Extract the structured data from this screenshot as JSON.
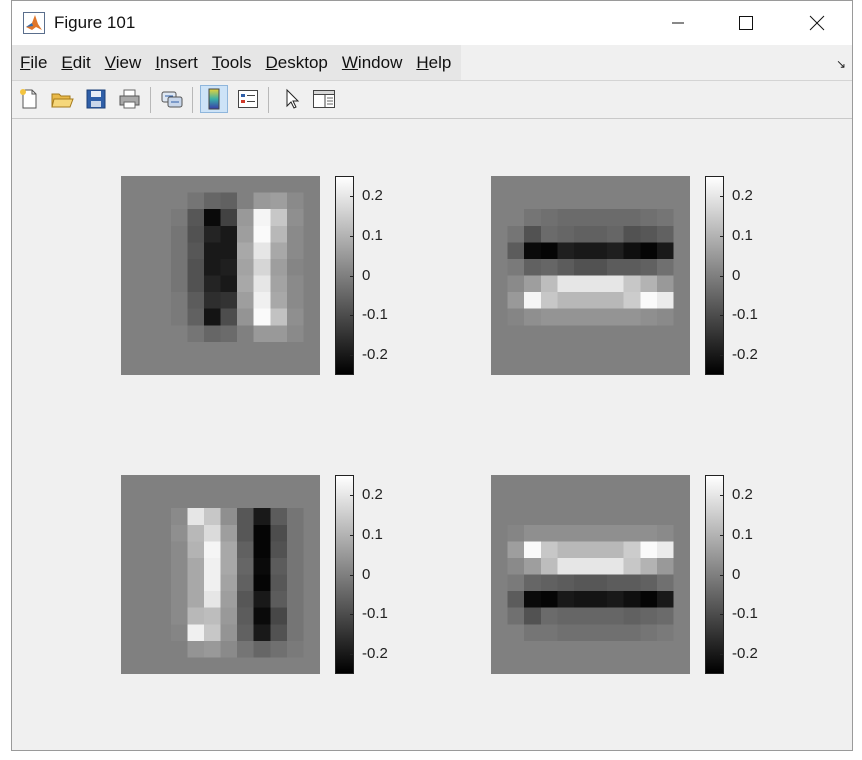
{
  "window": {
    "title": "Figure 101",
    "controls": {
      "minimize": "minimize",
      "maximize": "maximize",
      "close": "close"
    }
  },
  "menu": [
    "File",
    "Edit",
    "View",
    "Insert",
    "Tools",
    "Desktop",
    "Window",
    "Help"
  ],
  "toolbar": [
    {
      "name": "new-figure-icon"
    },
    {
      "name": "open-file-icon"
    },
    {
      "name": "save-icon"
    },
    {
      "name": "print-icon"
    },
    {
      "name": "link-plot-icon"
    },
    {
      "name": "colorbar-toggle-icon",
      "active": true
    },
    {
      "name": "legend-toggle-icon"
    },
    {
      "name": "edit-plot-pointer-icon"
    },
    {
      "name": "property-inspector-icon"
    }
  ],
  "chart_data": [
    {
      "type": "heatmap",
      "colormap": "gray",
      "clim": [
        -0.25,
        0.25
      ],
      "colorbar_ticks": [
        "0.2",
        "0.1",
        "0",
        "-0.1",
        "-0.2"
      ],
      "colorbar_tick_values": [
        0.2,
        0.1,
        0,
        -0.1,
        -0.2
      ],
      "matrix": [
        [
          0,
          0,
          0,
          0,
          0,
          0,
          0,
          0,
          0,
          0,
          0,
          0
        ],
        [
          0,
          0,
          0,
          0,
          -0.02,
          -0.05,
          -0.06,
          0,
          0.05,
          0.06,
          0.02,
          0
        ],
        [
          0,
          0,
          0,
          -0.01,
          -0.08,
          -0.23,
          -0.12,
          0.05,
          0.23,
          0.14,
          0.03,
          0
        ],
        [
          0,
          0,
          0,
          -0.02,
          -0.09,
          -0.18,
          -0.2,
          0.06,
          0.24,
          0.11,
          0.02,
          0
        ],
        [
          0,
          0,
          0,
          -0.02,
          -0.08,
          -0.2,
          -0.2,
          0.08,
          0.2,
          0.08,
          0.02,
          0
        ],
        [
          0,
          0,
          0,
          -0.02,
          -0.09,
          -0.2,
          -0.19,
          0.07,
          0.17,
          0.06,
          0.01,
          0
        ],
        [
          0,
          0,
          0,
          -0.02,
          -0.09,
          -0.18,
          -0.2,
          0.08,
          0.2,
          0.07,
          0.02,
          0
        ],
        [
          0,
          0,
          0,
          -0.01,
          -0.07,
          -0.16,
          -0.15,
          0.06,
          0.22,
          0.08,
          0.02,
          0
        ],
        [
          0,
          0,
          0,
          -0.01,
          -0.06,
          -0.21,
          -0.1,
          0.04,
          0.24,
          0.13,
          0.03,
          0
        ],
        [
          0,
          0,
          0,
          0,
          -0.02,
          -0.05,
          -0.04,
          0,
          0.05,
          0.05,
          0.02,
          0
        ],
        [
          0,
          0,
          0,
          0,
          0,
          0,
          0,
          0,
          0,
          0,
          0,
          0
        ],
        [
          0,
          0,
          0,
          0,
          0,
          0,
          0,
          0,
          0,
          0,
          0,
          0
        ]
      ]
    },
    {
      "type": "heatmap",
      "colormap": "gray",
      "clim": [
        -0.25,
        0.25
      ],
      "colorbar_ticks": [
        "0.2",
        "0.1",
        "0",
        "-0.1",
        "-0.2"
      ],
      "colorbar_tick_values": [
        0.2,
        0.1,
        0,
        -0.1,
        -0.2
      ],
      "matrix": [
        [
          0,
          0,
          0,
          0,
          0,
          0,
          0,
          0,
          0,
          0,
          0,
          0
        ],
        [
          0,
          0,
          0,
          0,
          0,
          0,
          0,
          0,
          0,
          0,
          0,
          0
        ],
        [
          0,
          0,
          -0.02,
          -0.03,
          -0.04,
          -0.04,
          -0.04,
          -0.04,
          -0.04,
          -0.03,
          -0.02,
          0
        ],
        [
          0,
          -0.02,
          -0.09,
          -0.04,
          -0.05,
          -0.06,
          -0.06,
          -0.05,
          -0.09,
          -0.08,
          -0.06,
          0
        ],
        [
          0,
          -0.07,
          -0.23,
          -0.24,
          -0.19,
          -0.2,
          -0.2,
          -0.19,
          -0.22,
          -0.24,
          -0.2,
          0
        ],
        [
          0,
          -0.01,
          -0.06,
          -0.05,
          -0.07,
          -0.09,
          -0.09,
          -0.07,
          -0.07,
          -0.06,
          -0.03,
          0
        ],
        [
          0,
          0.02,
          0.06,
          0.12,
          0.2,
          0.2,
          0.2,
          0.2,
          0.14,
          0.1,
          0.05,
          0
        ],
        [
          0,
          0.05,
          0.23,
          0.14,
          0.11,
          0.11,
          0.11,
          0.11,
          0.15,
          0.24,
          0.21,
          0
        ],
        [
          0,
          0.01,
          0.03,
          0.04,
          0.04,
          0.04,
          0.04,
          0.04,
          0.04,
          0.03,
          0.02,
          0
        ],
        [
          0,
          0,
          0,
          0,
          0,
          0,
          0,
          0,
          0,
          0,
          0,
          0
        ],
        [
          0,
          0,
          0,
          0,
          0,
          0,
          0,
          0,
          0,
          0,
          0,
          0
        ],
        [
          0,
          0,
          0,
          0,
          0,
          0,
          0,
          0,
          0,
          0,
          0,
          0
        ]
      ]
    },
    {
      "type": "heatmap",
      "colormap": "gray",
      "clim": [
        -0.25,
        0.25
      ],
      "colorbar_ticks": [
        "0.2",
        "0.1",
        "0",
        "-0.1",
        "-0.2"
      ],
      "colorbar_tick_values": [
        0.2,
        0.1,
        0,
        -0.1,
        -0.2
      ],
      "matrix": [
        [
          0,
          0,
          0,
          0,
          0,
          0,
          0,
          0,
          0,
          0,
          0,
          0
        ],
        [
          0,
          0,
          0,
          0,
          0,
          0,
          0,
          0,
          0,
          0,
          0,
          0
        ],
        [
          0,
          0,
          0,
          0.02,
          0.2,
          0.14,
          0.03,
          -0.08,
          -0.2,
          -0.07,
          -0.02,
          0
        ],
        [
          0,
          0,
          0,
          0.03,
          0.11,
          0.18,
          0.06,
          -0.08,
          -0.24,
          -0.1,
          -0.02,
          0
        ],
        [
          0,
          0,
          0,
          0.02,
          0.1,
          0.23,
          0.08,
          -0.06,
          -0.24,
          -0.09,
          -0.02,
          0
        ],
        [
          0,
          0,
          0,
          0.02,
          0.08,
          0.22,
          0.08,
          -0.05,
          -0.23,
          -0.07,
          -0.02,
          0
        ],
        [
          0,
          0,
          0,
          0.02,
          0.08,
          0.22,
          0.07,
          -0.06,
          -0.24,
          -0.08,
          -0.02,
          0
        ],
        [
          0,
          0,
          0,
          0.02,
          0.08,
          0.2,
          0.06,
          -0.08,
          -0.2,
          -0.07,
          -0.02,
          0
        ],
        [
          0,
          0,
          0,
          0.02,
          0.11,
          0.12,
          0.05,
          -0.07,
          -0.23,
          -0.11,
          -0.02,
          0
        ],
        [
          0,
          0,
          0,
          0.01,
          0.22,
          0.14,
          0.04,
          -0.06,
          -0.2,
          -0.09,
          -0.02,
          0
        ],
        [
          0,
          0,
          0,
          0,
          0.04,
          0.05,
          0.02,
          -0.02,
          -0.05,
          -0.03,
          -0.01,
          0
        ],
        [
          0,
          0,
          0,
          0,
          0,
          0,
          0,
          0,
          0,
          0,
          0,
          0
        ]
      ]
    },
    {
      "type": "heatmap",
      "colormap": "gray",
      "clim": [
        -0.25,
        0.25
      ],
      "colorbar_ticks": [
        "0.2",
        "0.1",
        "0",
        "-0.1",
        "-0.2"
      ],
      "colorbar_tick_values": [
        0.2,
        0.1,
        0,
        -0.1,
        -0.2
      ],
      "matrix": [
        [
          0,
          0,
          0,
          0,
          0,
          0,
          0,
          0,
          0,
          0,
          0,
          0
        ],
        [
          0,
          0,
          0,
          0,
          0,
          0,
          0,
          0,
          0,
          0,
          0,
          0
        ],
        [
          0,
          0,
          0,
          0,
          0,
          0,
          0,
          0,
          0,
          0,
          0,
          0
        ],
        [
          0,
          0.01,
          0.03,
          0.03,
          0.03,
          0.03,
          0.03,
          0.03,
          0.03,
          0.03,
          0.02,
          0
        ],
        [
          0,
          0.06,
          0.24,
          0.14,
          0.11,
          0.11,
          0.11,
          0.11,
          0.15,
          0.24,
          0.21,
          0
        ],
        [
          0,
          0.02,
          0.06,
          0.12,
          0.2,
          0.2,
          0.2,
          0.2,
          0.14,
          0.1,
          0.05,
          0
        ],
        [
          0,
          -0.01,
          -0.05,
          -0.06,
          -0.07,
          -0.08,
          -0.08,
          -0.07,
          -0.07,
          -0.06,
          -0.03,
          0
        ],
        [
          0,
          -0.07,
          -0.23,
          -0.24,
          -0.2,
          -0.21,
          -0.21,
          -0.2,
          -0.22,
          -0.24,
          -0.2,
          0
        ],
        [
          0,
          -0.03,
          -0.09,
          -0.04,
          -0.05,
          -0.05,
          -0.05,
          -0.05,
          -0.06,
          -0.05,
          -0.04,
          0
        ],
        [
          0,
          0,
          -0.02,
          -0.02,
          -0.03,
          -0.03,
          -0.03,
          -0.03,
          -0.03,
          -0.02,
          -0.01,
          0
        ],
        [
          0,
          0,
          0,
          0,
          0,
          0,
          0,
          0,
          0,
          0,
          0,
          0
        ],
        [
          0,
          0,
          0,
          0,
          0,
          0,
          0,
          0,
          0,
          0,
          0,
          0
        ]
      ]
    }
  ]
}
